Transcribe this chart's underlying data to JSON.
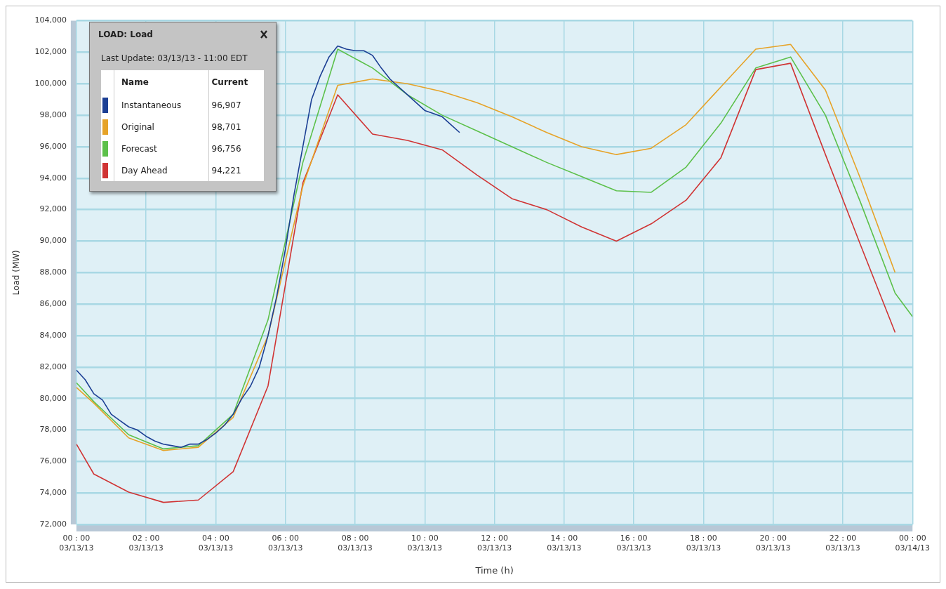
{
  "chart_data": {
    "type": "line",
    "legend_title": "LOAD: Load",
    "xlabel": "Time (h)",
    "ylabel": "Load (MW)",
    "annotations": [
      "Last Update:  03/13/13 - 11:00 EDT",
      "Name",
      "Current",
      "96,907",
      "98,701",
      "96,756",
      "94,221"
    ],
    "xlim": [
      "--03-13T00:00",
      "--03-14T00:00"
    ],
    "xticks": [
      {
        "value": "--03-13T00:00",
        "label": "00 : 00\n03/13/13"
      },
      {
        "value": "--03-13T02:00",
        "label": "02 : 00\n03/13/13"
      },
      {
        "value": "--03-13T04:00",
        "label": "04 : 00\n03/13/13"
      },
      {
        "value": "--03-13T06:00",
        "label": "06 : 00\n03/13/13"
      },
      {
        "value": "--03-13T08:00",
        "label": "08 : 00\n03/13/13"
      },
      {
        "value": "--03-13T10:00",
        "label": "10 : 00\n03/13/13"
      },
      {
        "value": "--03-13T12:00",
        "label": "12 : 00\n03/13/13"
      },
      {
        "value": "--03-13T14:00",
        "label": "14 : 00\n03/13/13"
      },
      {
        "value": "--03-13T16:00",
        "label": "16 : 00\n03/13/13"
      },
      {
        "value": "--03-13T18:00",
        "label": "18 : 00\n03/13/13"
      },
      {
        "value": "--03-13T20:00",
        "label": "20 : 00\n03/13/13"
      },
      {
        "value": "--03-13T22:00",
        "label": "22 : 00\n03/13/13"
      },
      {
        "value": "--03-14T00:00",
        "label": "00 : 00\n03/14/13"
      }
    ],
    "ylim": [
      72000,
      104000
    ],
    "yticks": [
      {
        "value": 72000,
        "label": "72,000"
      },
      {
        "value": 74000,
        "label": "74,000"
      },
      {
        "value": 76000,
        "label": "76,000"
      },
      {
        "value": 78000,
        "label": "78,000"
      },
      {
        "value": 80000,
        "label": "80,000"
      },
      {
        "value": 82000,
        "label": "82,000"
      },
      {
        "value": 84000,
        "label": "84,000"
      },
      {
        "value": 86000,
        "label": "86,000"
      },
      {
        "value": 88000,
        "label": "88,000"
      },
      {
        "value": 90000,
        "label": "90,000"
      },
      {
        "value": 92000,
        "label": "92,000"
      },
      {
        "value": 94000,
        "label": "94,000"
      },
      {
        "value": 96000,
        "label": "96,000"
      },
      {
        "value": 98000,
        "label": "98,000"
      },
      {
        "value": 100000,
        "label": "100,000"
      },
      {
        "value": 102000,
        "label": "102,000"
      },
      {
        "value": 104000,
        "label": "104,000"
      }
    ],
    "grid": true,
    "legend": "top left",
    "marker": "none",
    "line_style": "solid",
    "series": [
      {
        "name": "Instantaneous",
        "color": "#1c3f94",
        "x": [
          "--03-13T00:00",
          "--03-13T00:15",
          "--03-13T00:30",
          "--03-13T00:45",
          "--03-13T01:00",
          "--03-13T01:15",
          "--03-13T01:30",
          "--03-13T01:45",
          "--03-13T02:00",
          "--03-13T02:15",
          "--03-13T02:30",
          "--03-13T02:45",
          "--03-13T03:00",
          "--03-13T03:15",
          "--03-13T03:30",
          "--03-13T03:45",
          "--03-13T04:00",
          "--03-13T04:15",
          "--03-13T04:30",
          "--03-13T04:45",
          "--03-13T05:00",
          "--03-13T05:15",
          "--03-13T05:30",
          "--03-13T05:45",
          "--03-13T06:00",
          "--03-13T06:15",
          "--03-13T06:30",
          "--03-13T06:45",
          "--03-13T07:00",
          "--03-13T07:15",
          "--03-13T07:30",
          "--03-13T07:45",
          "--03-13T08:00",
          "--03-13T08:15",
          "--03-13T08:30",
          "--03-13T08:45",
          "--03-13T09:00",
          "--03-13T09:15",
          "--03-13T09:30",
          "--03-13T09:45",
          "--03-13T10:00",
          "--03-13T10:15",
          "--03-13T10:30",
          "--03-13T10:45",
          "--03-13T11:00"
        ],
        "values": [
          81800,
          81200,
          80300,
          79900,
          79000,
          78600,
          78200,
          78000,
          77600,
          77300,
          77100,
          77000,
          76900,
          77100,
          77100,
          77400,
          77800,
          78300,
          79000,
          80000,
          80800,
          82000,
          84000,
          86500,
          89500,
          93000,
          96000,
          99000,
          100500,
          101700,
          102400,
          102200,
          102100,
          102100,
          101800,
          101000,
          100300,
          99800,
          99300,
          98800,
          98300,
          98100,
          97900,
          97400,
          96900
        ]
      },
      {
        "name": "Original",
        "color": "#e6a328",
        "x": [
          "--03-13T00:00",
          "--03-13T00:30",
          "--03-13T01:30",
          "--03-13T02:30",
          "--03-13T03:30",
          "--03-13T04:30",
          "--03-13T05:30",
          "--03-13T06:30",
          "--03-13T07:30",
          "--03-13T08:30",
          "--03-13T09:30",
          "--03-13T10:30",
          "--03-13T11:30",
          "--03-13T12:30",
          "--03-13T13:30",
          "--03-13T14:30",
          "--03-13T15:30",
          "--03-13T16:30",
          "--03-13T17:30",
          "--03-13T18:30",
          "--03-13T19:30",
          "--03-13T20:30",
          "--03-13T21:30",
          "--03-13T22:30",
          "--03-13T23:30"
        ],
        "values": [
          80700,
          79700,
          77500,
          76700,
          76900,
          78800,
          84000,
          93500,
          99900,
          100300,
          100000,
          99500,
          98800,
          97900,
          96900,
          96000,
          95500,
          95900,
          97400,
          99800,
          102200,
          102500,
          99600,
          94000,
          88000
        ]
      },
      {
        "name": "Forecast",
        "color": "#5cc04a",
        "x": [
          "--03-13T00:00",
          "--03-13T00:30",
          "--03-13T01:30",
          "--03-13T02:30",
          "--03-13T03:30",
          "--03-13T04:30",
          "--03-13T05:30",
          "--03-13T06:30",
          "--03-13T07:30",
          "--03-13T08:30",
          "--03-13T09:30",
          "--03-13T10:30",
          "--03-13T11:30",
          "--03-13T12:30",
          "--03-13T13:30",
          "--03-13T14:30",
          "--03-13T15:30",
          "--03-13T16:30",
          "--03-13T17:30",
          "--03-13T18:30",
          "--03-13T19:30",
          "--03-13T20:30",
          "--03-13T21:30",
          "--03-13T22:30",
          "--03-13T23:30",
          "--03-14T00:00"
        ],
        "values": [
          81000,
          79800,
          77700,
          76800,
          77000,
          79000,
          85000,
          95000,
          102200,
          101000,
          99300,
          98000,
          97000,
          96000,
          95000,
          94100,
          93200,
          93100,
          94700,
          97500,
          101000,
          101700,
          98000,
          92500,
          86700,
          85200
        ]
      },
      {
        "name": "Day Ahead",
        "color": "#d03434",
        "x": [
          "--03-13T00:00",
          "--03-13T00:30",
          "--03-13T01:30",
          "--03-13T02:30",
          "--03-13T03:30",
          "--03-13T04:30",
          "--03-13T05:30",
          "--03-13T06:30",
          "--03-13T07:30",
          "--03-13T08:30",
          "--03-13T09:30",
          "--03-13T10:30",
          "--03-13T11:30",
          "--03-13T12:30",
          "--03-13T13:30",
          "--03-13T14:30",
          "--03-13T15:30",
          "--03-13T16:30",
          "--03-13T17:30",
          "--03-13T18:30",
          "--03-13T19:30",
          "--03-13T20:30",
          "--03-13T21:30",
          "--03-13T22:30",
          "--03-13T23:30"
        ],
        "values": [
          77100,
          75200,
          74050,
          73400,
          73550,
          75350,
          80800,
          93700,
          99300,
          96800,
          96400,
          95800,
          94200,
          92700,
          92000,
          90900,
          90000,
          91100,
          92600,
          95300,
          100900,
          101300,
          95500,
          89800,
          84200
        ]
      }
    ]
  }
}
